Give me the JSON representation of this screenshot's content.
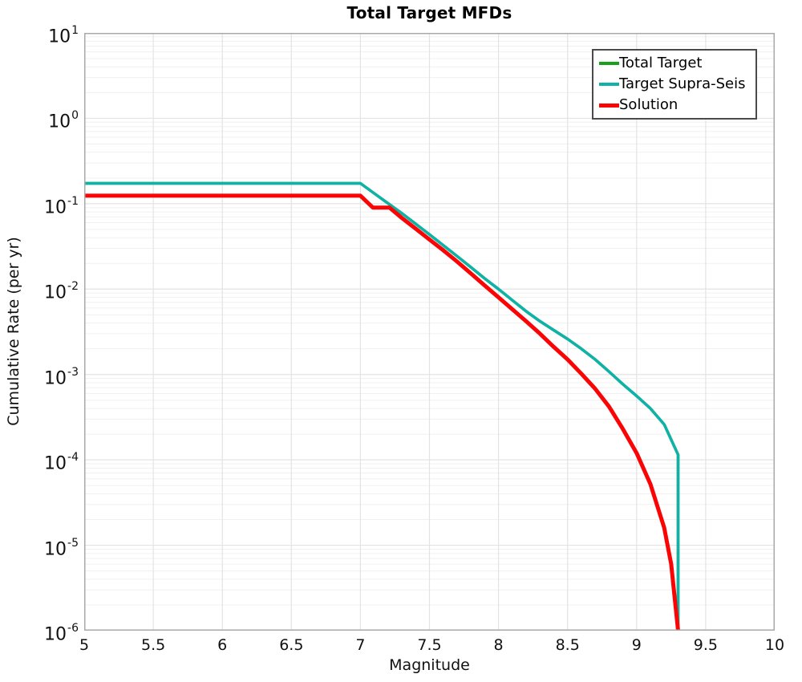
{
  "figure": {
    "title": "Total Target MFDs",
    "xlabel": "Magnitude",
    "ylabel": "Cumulative Rate (per yr)"
  },
  "chart_data": {
    "type": "line",
    "title": "Total Target MFDs",
    "xlabel": "Magnitude",
    "ylabel": "Cumulative Rate (per yr)",
    "x_axis": {
      "min": 5,
      "max": 10,
      "ticks": [
        5,
        5.5,
        6,
        6.5,
        7,
        7.5,
        8,
        8.5,
        9,
        9.5,
        10
      ]
    },
    "y_axis": {
      "scale": "log",
      "min": 1e-06,
      "max": 10,
      "tick_exponents": [
        1,
        0,
        -1,
        -2,
        -3,
        -4,
        -5,
        -6
      ]
    },
    "grid": {
      "vertical_step": 0.5,
      "log_minor_lines": true,
      "minor_color": "#f0f0f0",
      "major_color": "#e3e3e3"
    },
    "spine_color": "#a9a9a9",
    "legend": {
      "position": "top-right",
      "border_color": "#4a4a4a"
    },
    "series": [
      {
        "name": "Total Target",
        "color": "#17a317",
        "width": 3.5,
        "note": "exactly overlapped by Target Supra-Seis curve",
        "points": [
          [
            5.0,
            0.173
          ],
          [
            7.0,
            0.173
          ],
          [
            7.1,
            0.132
          ],
          [
            7.2,
            0.101
          ],
          [
            7.3,
            0.077
          ],
          [
            7.4,
            0.058
          ],
          [
            7.5,
            0.0435
          ],
          [
            7.6,
            0.0325
          ],
          [
            7.7,
            0.0243
          ],
          [
            7.8,
            0.018
          ],
          [
            7.9,
            0.0133
          ],
          [
            8.0,
            0.01
          ],
          [
            8.1,
            0.0074
          ],
          [
            8.2,
            0.0055
          ],
          [
            8.3,
            0.0042
          ],
          [
            8.4,
            0.0033
          ],
          [
            8.5,
            0.0026
          ],
          [
            8.6,
            0.002
          ],
          [
            8.7,
            0.0015
          ],
          [
            8.8,
            0.00108
          ],
          [
            8.9,
            0.00077
          ],
          [
            9.0,
            0.00056
          ],
          [
            9.1,
            0.0004
          ],
          [
            9.2,
            0.00026
          ],
          [
            9.3,
            0.000115
          ],
          [
            9.3,
            1e-06
          ]
        ]
      },
      {
        "name": "Target Supra-Seis",
        "color": "#0fb2a9",
        "width": 3.5,
        "points": [
          [
            5.0,
            0.173
          ],
          [
            7.0,
            0.173
          ],
          [
            7.1,
            0.132
          ],
          [
            7.2,
            0.101
          ],
          [
            7.3,
            0.077
          ],
          [
            7.4,
            0.058
          ],
          [
            7.5,
            0.0435
          ],
          [
            7.6,
            0.0325
          ],
          [
            7.7,
            0.0243
          ],
          [
            7.8,
            0.018
          ],
          [
            7.9,
            0.0133
          ],
          [
            8.0,
            0.01
          ],
          [
            8.1,
            0.0074
          ],
          [
            8.2,
            0.0055
          ],
          [
            8.3,
            0.0042
          ],
          [
            8.4,
            0.0033
          ],
          [
            8.5,
            0.0026
          ],
          [
            8.6,
            0.002
          ],
          [
            8.7,
            0.0015
          ],
          [
            8.8,
            0.00108
          ],
          [
            8.9,
            0.00077
          ],
          [
            9.0,
            0.00056
          ],
          [
            9.1,
            0.0004
          ],
          [
            9.2,
            0.00026
          ],
          [
            9.3,
            0.000115
          ],
          [
            9.3,
            1e-06
          ]
        ]
      },
      {
        "name": "Solution",
        "color": "#fa0405",
        "width": 5,
        "points": [
          [
            5.0,
            0.124
          ],
          [
            7.0,
            0.124
          ],
          [
            7.09,
            0.09
          ],
          [
            7.21,
            0.09
          ],
          [
            7.3,
            0.068
          ],
          [
            7.4,
            0.051
          ],
          [
            7.5,
            0.038
          ],
          [
            7.6,
            0.0285
          ],
          [
            7.7,
            0.021
          ],
          [
            7.8,
            0.0152
          ],
          [
            7.9,
            0.011
          ],
          [
            8.0,
            0.008
          ],
          [
            8.1,
            0.0058
          ],
          [
            8.2,
            0.0042
          ],
          [
            8.3,
            0.003
          ],
          [
            8.4,
            0.0021
          ],
          [
            8.5,
            0.0015
          ],
          [
            8.6,
            0.00102
          ],
          [
            8.7,
            0.00068
          ],
          [
            8.8,
            0.00042
          ],
          [
            8.9,
            0.00023
          ],
          [
            9.0,
            0.00012
          ],
          [
            9.1,
            5.2e-05
          ],
          [
            9.2,
            1.6e-05
          ],
          [
            9.25,
            6e-06
          ],
          [
            9.3,
            1e-06
          ]
        ]
      }
    ]
  }
}
